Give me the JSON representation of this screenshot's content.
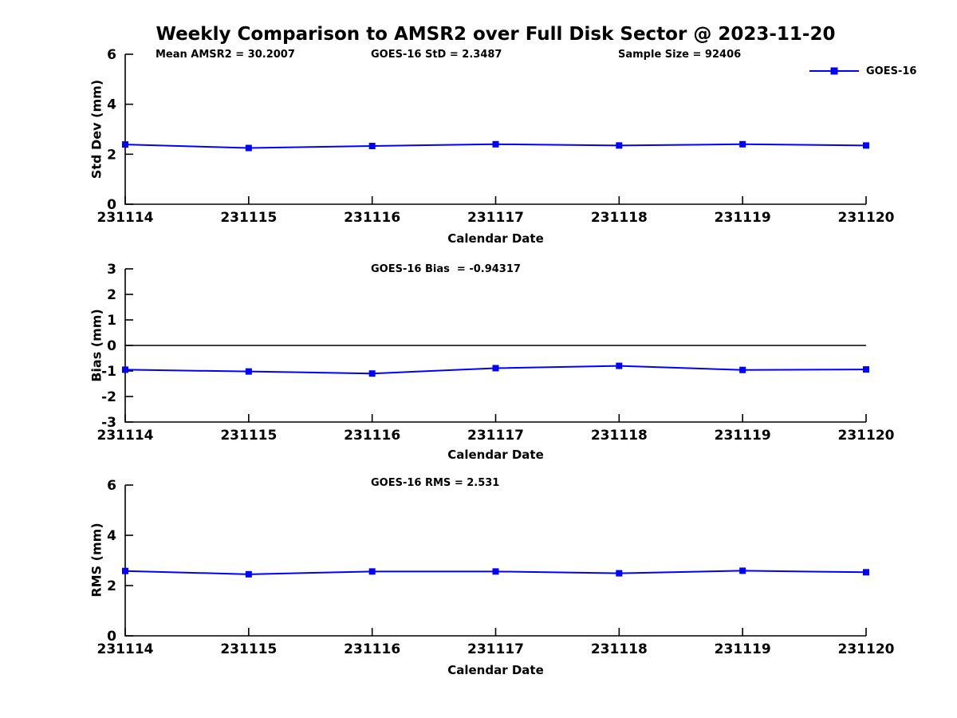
{
  "title": "Weekly Comparison to AMSR2 over Full Disk Sector @ 2023-11-20",
  "legend": {
    "label": "GOES-16",
    "color": "#0000ff",
    "marker": "square"
  },
  "annotations": {
    "subplot1": [
      "Mean AMSR2 = 30.2007",
      "GOES-16 StD = 2.3487",
      "Sample Size = 92406"
    ],
    "subplot2": "GOES-16 Bias  = -0.94317",
    "subplot3": "GOES-16 RMS = 2.531"
  },
  "chart_data": [
    {
      "type": "line",
      "name": "std-dev-weekly",
      "x_categories": [
        "231114",
        "231115",
        "231116",
        "231117",
        "231118",
        "231119",
        "231120"
      ],
      "series": [
        {
          "name": "GOES-16",
          "values": [
            2.39,
            2.25,
            2.33,
            2.4,
            2.35,
            2.4,
            2.35
          ]
        }
      ],
      "xlabel": "Calendar Date",
      "ylabel": "Std Dev (mm)",
      "ylim": [
        0,
        6
      ],
      "yticks": [
        0,
        2,
        4,
        6
      ],
      "zero_line": false,
      "grid": false,
      "legend_position": "top-right"
    },
    {
      "type": "line",
      "name": "bias-weekly",
      "x_categories": [
        "231114",
        "231115",
        "231116",
        "231117",
        "231118",
        "231119",
        "231120"
      ],
      "series": [
        {
          "name": "GOES-16",
          "values": [
            -0.95,
            -1.02,
            -1.1,
            -0.89,
            -0.8,
            -0.96,
            -0.94
          ]
        }
      ],
      "xlabel": "Calendar Date",
      "ylabel": "Bias (mm)",
      "ylim": [
        -3,
        3
      ],
      "yticks": [
        -3,
        -2,
        -1,
        0,
        1,
        2,
        3
      ],
      "zero_line": true,
      "grid": false,
      "legend_position": "none"
    },
    {
      "type": "line",
      "name": "rms-weekly",
      "x_categories": [
        "231114",
        "231115",
        "231116",
        "231117",
        "231118",
        "231119",
        "231120"
      ],
      "series": [
        {
          "name": "GOES-16",
          "values": [
            2.58,
            2.45,
            2.56,
            2.56,
            2.49,
            2.59,
            2.53
          ]
        }
      ],
      "xlabel": "Calendar Date",
      "ylabel": "RMS (mm)",
      "ylim": [
        0,
        6
      ],
      "yticks": [
        0,
        2,
        4,
        6
      ],
      "zero_line": false,
      "grid": false,
      "legend_position": "none"
    }
  ]
}
